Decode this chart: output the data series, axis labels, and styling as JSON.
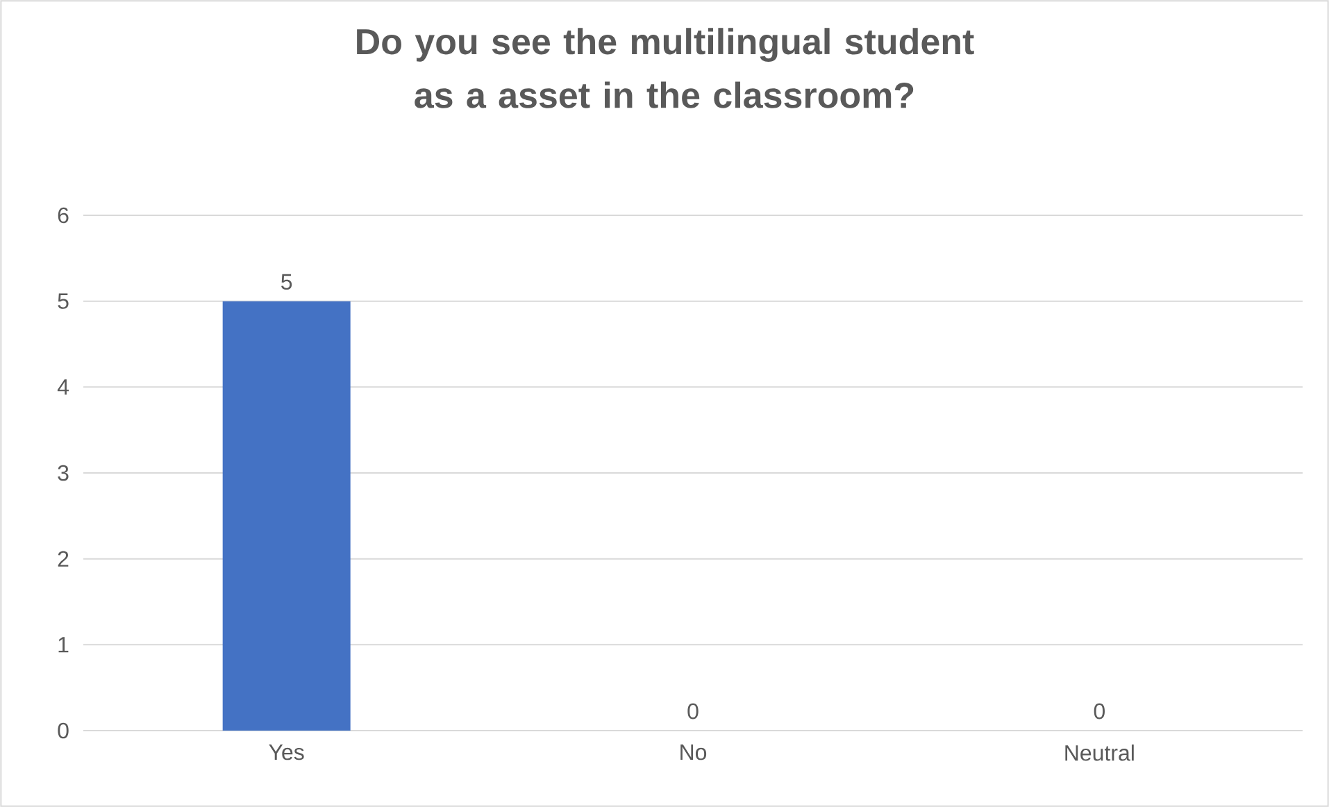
{
  "chart_data": {
    "type": "bar",
    "title": "Do you see the multilingual student as a asset in the classroom?",
    "categories": [
      "Yes",
      "No",
      "Neutral"
    ],
    "values": [
      5,
      0,
      0
    ],
    "color": "#4472c4",
    "ylim": [
      0,
      6
    ],
    "yticks": [
      0,
      1,
      2,
      3,
      4,
      5,
      6
    ],
    "grid": "y",
    "data_labels": true
  }
}
